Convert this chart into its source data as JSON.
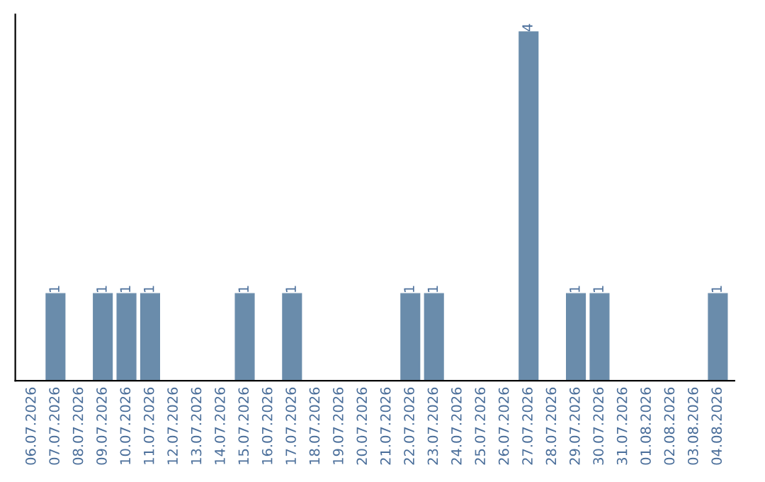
{
  "chart_data": {
    "type": "bar",
    "categories": [
      "06.07.2026",
      "07.07.2026",
      "08.07.2026",
      "09.07.2026",
      "10.07.2026",
      "11.07.2026",
      "12.07.2026",
      "13.07.2026",
      "14.07.2026",
      "15.07.2026",
      "16.07.2026",
      "17.07.2026",
      "18.07.2026",
      "19.07.2026",
      "20.07.2026",
      "21.07.2026",
      "22.07.2026",
      "23.07.2026",
      "24.07.2026",
      "25.07.2026",
      "26.07.2026",
      "27.07.2026",
      "28.07.2026",
      "29.07.2026",
      "30.07.2026",
      "31.07.2026",
      "01.08.2026",
      "02.08.2026",
      "03.08.2026",
      "04.08.2026"
    ],
    "values": [
      0,
      1,
      0,
      1,
      1,
      1,
      0,
      0,
      0,
      1,
      0,
      1,
      0,
      0,
      0,
      0,
      1,
      1,
      0,
      0,
      0,
      4,
      0,
      1,
      1,
      0,
      0,
      0,
      0,
      1
    ],
    "value_labels": [
      null,
      "1",
      null,
      "1",
      "1",
      "1",
      null,
      null,
      null,
      "1",
      null,
      "1",
      null,
      null,
      null,
      null,
      "1",
      "1",
      null,
      null,
      null,
      "4",
      null,
      "1",
      "1",
      null,
      null,
      null,
      null,
      "1"
    ],
    "color": "#6a8cab",
    "grid": false,
    "legend": false,
    "tick_labels": "x"
  }
}
